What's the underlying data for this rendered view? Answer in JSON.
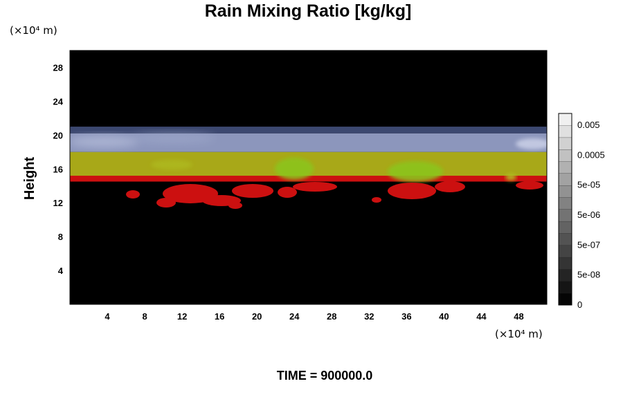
{
  "chart_data": {
    "type": "heatmap",
    "title": "Rain Mixing Ratio [kg/kg]",
    "ylabel": "Height",
    "xlabel": "",
    "x_unit": "(×10⁴ m)",
    "y_unit": "(×10⁴ m)",
    "x_ticks": [
      "4",
      "8",
      "12",
      "16",
      "20",
      "24",
      "28",
      "32",
      "36",
      "40",
      "44",
      "48"
    ],
    "y_ticks": [
      "4",
      "8",
      "12",
      "16",
      "20",
      "24",
      "28"
    ],
    "xlim": [
      0,
      51
    ],
    "ylim": [
      0,
      30
    ],
    "grid": false,
    "colorbar": {
      "labels": [
        "0.005",
        "0.0005",
        "5e-05",
        "5e-06",
        "5e-07",
        "5e-08",
        "0"
      ],
      "levels": 16,
      "gray_min": "#050505",
      "gray_max": "#f0f0f0"
    },
    "layers": [
      {
        "y_range": [
          21.0,
          30.0
        ],
        "color": "#000000"
      },
      {
        "y_range": [
          20.2,
          21.0
        ],
        "color": "#3c4870"
      },
      {
        "y_range": [
          18.0,
          20.2
        ],
        "color": "#8c96bc"
      },
      {
        "y_range": [
          15.0,
          18.0
        ],
        "color": "#a8a818"
      },
      {
        "y_range": [
          14.5,
          15.2
        ],
        "color": "#cc1010"
      },
      {
        "y_range": [
          0.0,
          14.5
        ],
        "color": "#000000"
      }
    ],
    "footer": "TIME = 900000.0"
  }
}
